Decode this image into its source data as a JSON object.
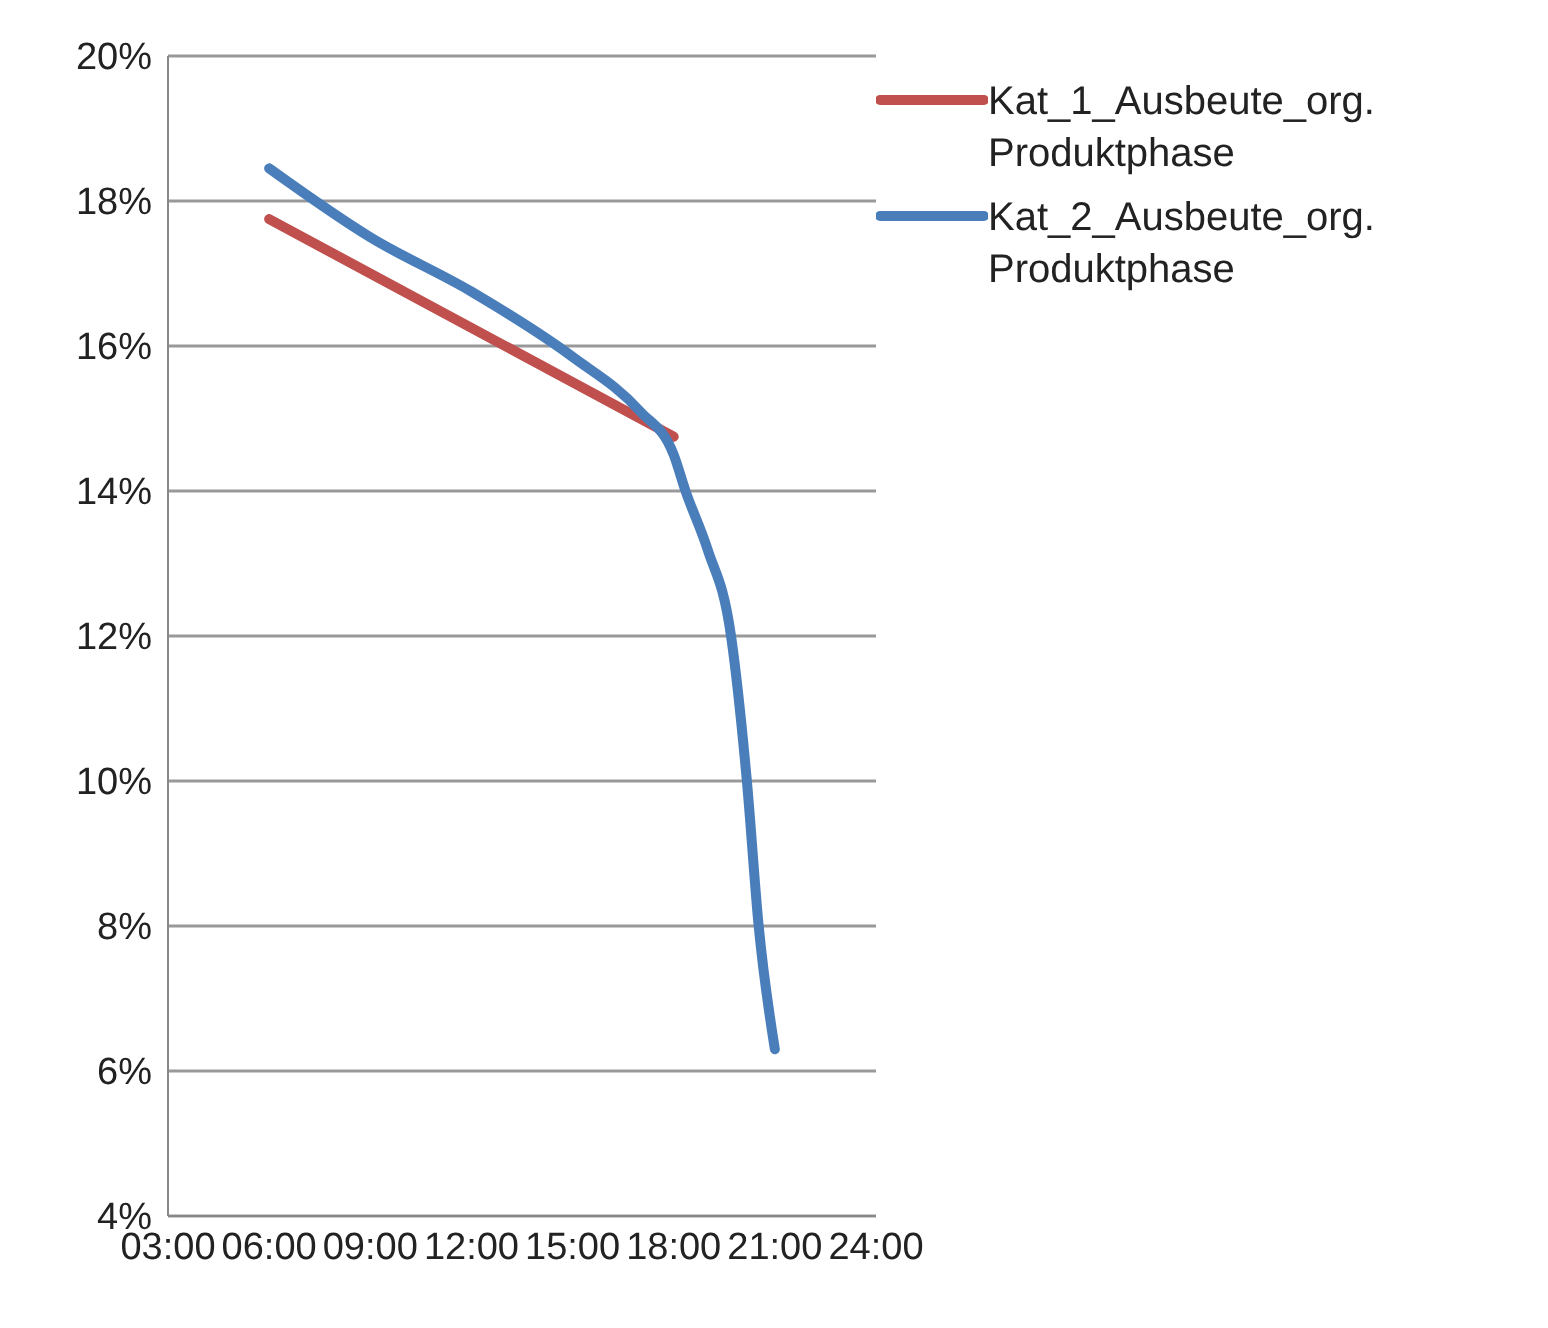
{
  "chart_data": {
    "type": "line",
    "xlim": [
      3,
      24
    ],
    "xticks": [
      {
        "value": 3,
        "label": "03:00"
      },
      {
        "value": 6,
        "label": "06:00"
      },
      {
        "value": 9,
        "label": "09:00"
      },
      {
        "value": 12,
        "label": "12:00"
      },
      {
        "value": 15,
        "label": "15:00"
      },
      {
        "value": 18,
        "label": "18:00"
      },
      {
        "value": 21,
        "label": "21:00"
      },
      {
        "value": 24,
        "label": "24:00"
      }
    ],
    "ylim": [
      4,
      20
    ],
    "yticks": [
      {
        "value": 4,
        "label": "4%"
      },
      {
        "value": 6,
        "label": "6%"
      },
      {
        "value": 8,
        "label": "8%"
      },
      {
        "value": 10,
        "label": "10%"
      },
      {
        "value": 12,
        "label": "12%"
      },
      {
        "value": 14,
        "label": "14%"
      },
      {
        "value": 16,
        "label": "16%"
      },
      {
        "value": 18,
        "label": "18%"
      },
      {
        "value": 20,
        "label": "20%"
      }
    ],
    "grid": "y",
    "legend": "top right",
    "marker": "none",
    "line_style": "solid",
    "series": [
      {
        "name": "Kat_1_Ausbeute_org. Produktphase",
        "color": "#c0504d",
        "x": [
          6,
          18
        ],
        "values": [
          17.75,
          14.75
        ]
      },
      {
        "name": "Kat_2_Ausbeute_org. Produktphase",
        "color": "#4a7ebb",
        "x": [
          6,
          9,
          12,
          15,
          17,
          18,
          18.35,
          19,
          19.7,
          20.17,
          20.52,
          21
        ],
        "values": [
          18.45,
          17.5,
          16.75,
          15.85,
          15.1,
          14.5,
          14,
          13.2,
          12,
          10,
          8,
          6.3
        ]
      }
    ]
  }
}
